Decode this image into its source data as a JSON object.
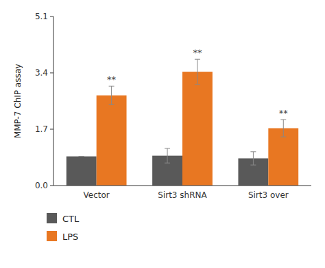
{
  "chart_data": {
    "type": "bar",
    "y_label": "MMP-7 ChIP assay",
    "categories": [
      "Vector",
      "Sirt3 shRNA",
      "Sirt3 over"
    ],
    "series": [
      {
        "name": "CTL",
        "color": "#595959",
        "values": [
          0.88,
          0.9,
          0.82
        ],
        "errors": [
          0.0,
          0.22,
          0.2
        ]
      },
      {
        "name": "LPS",
        "color": "#E87722",
        "values": [
          2.72,
          3.43,
          1.73
        ],
        "errors": [
          0.28,
          0.38,
          0.26
        ],
        "annotations": [
          "**",
          "**",
          "**"
        ]
      }
    ],
    "ylim": [
      0,
      5.1
    ],
    "yticks": [
      {
        "value": 0,
        "label": "0.0"
      },
      1.7,
      3.4,
      5.1
    ],
    "grid": false,
    "legend": "bottom"
  }
}
